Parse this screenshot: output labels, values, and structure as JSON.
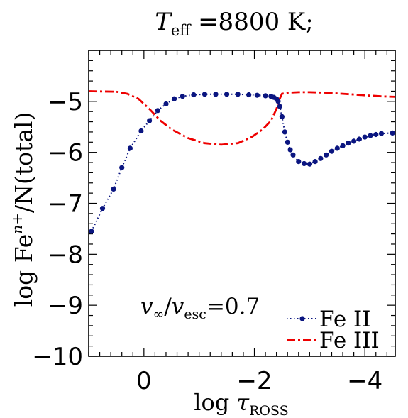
{
  "chart_data": {
    "type": "line",
    "title": {
      "t": "T",
      "sub": "eff",
      "rest": " =8800 K;"
    },
    "xlabel": {
      "prefix": "log ",
      "tau": "τ",
      "sub": "ROSS"
    },
    "ylabel": {
      "prefix": "log Fe",
      "sup": "n+",
      "suffix": "/N(total)"
    },
    "annotation": {
      "v1": "v",
      "s1": "∞",
      "slash": "/",
      "v2": "v",
      "s2": "esc",
      "eq": "=0.7"
    },
    "xlim": [
      1.0,
      -4.55
    ],
    "ylim": [
      -10,
      -4
    ],
    "xticks": [
      0,
      -2,
      -4
    ],
    "xtick_labels": [
      "0",
      "−2",
      "−4"
    ],
    "yticks": [
      -10,
      -9,
      -8,
      -7,
      -6,
      -5
    ],
    "ytick_labels": [
      "−10",
      "−9",
      "−8",
      "−7",
      "−6",
      "−5"
    ],
    "grid": false,
    "legend_placement": "bottom-right",
    "series": [
      {
        "name": "Fe II",
        "color": "#0a1580",
        "style": "dotted-with-markers",
        "x": [
          0.95,
          0.75,
          0.55,
          0.4,
          0.25,
          0.05,
          -0.1,
          -0.25,
          -0.4,
          -0.55,
          -0.7,
          -0.9,
          -1.1,
          -1.3,
          -1.5,
          -1.7,
          -1.9,
          -2.05,
          -2.2,
          -2.3,
          -2.35,
          -2.4,
          -2.43,
          -2.46,
          -2.5,
          -2.55,
          -2.6,
          -2.65,
          -2.7,
          -2.8,
          -2.9,
          -3.0,
          -3.1,
          -3.2,
          -3.3,
          -3.4,
          -3.5,
          -3.6,
          -3.7,
          -3.8,
          -3.9,
          -4.0,
          -4.1,
          -4.2,
          -4.3,
          -4.5
        ],
        "y": [
          -7.55,
          -7.1,
          -6.72,
          -6.3,
          -5.92,
          -5.58,
          -5.38,
          -5.18,
          -5.05,
          -4.95,
          -4.9,
          -4.87,
          -4.86,
          -4.86,
          -4.86,
          -4.86,
          -4.87,
          -4.88,
          -4.89,
          -4.9,
          -4.92,
          -4.95,
          -5.0,
          -5.1,
          -5.3,
          -5.6,
          -5.8,
          -5.95,
          -6.05,
          -6.18,
          -6.22,
          -6.23,
          -6.18,
          -6.12,
          -6.05,
          -5.98,
          -5.92,
          -5.87,
          -5.82,
          -5.78,
          -5.74,
          -5.7,
          -5.67,
          -5.65,
          -5.63,
          -5.62
        ]
      },
      {
        "name": "Fe III",
        "color": "#ee0000",
        "style": "dash-dot",
        "x": [
          1.0,
          0.5,
          0.3,
          0.1,
          -0.1,
          -0.3,
          -0.5,
          -0.8,
          -1.1,
          -1.4,
          -1.7,
          -1.95,
          -2.15,
          -2.3,
          -2.4,
          -2.45,
          -2.5,
          -2.6,
          -2.8,
          -3.0,
          -3.3,
          -3.6,
          -4.0,
          -4.3,
          -4.55
        ],
        "y": [
          -4.8,
          -4.81,
          -4.85,
          -4.95,
          -5.15,
          -5.38,
          -5.55,
          -5.72,
          -5.82,
          -5.85,
          -5.82,
          -5.7,
          -5.55,
          -5.38,
          -5.15,
          -4.97,
          -4.85,
          -4.83,
          -4.82,
          -4.82,
          -4.83,
          -4.85,
          -4.88,
          -4.9,
          -4.91
        ]
      }
    ]
  }
}
